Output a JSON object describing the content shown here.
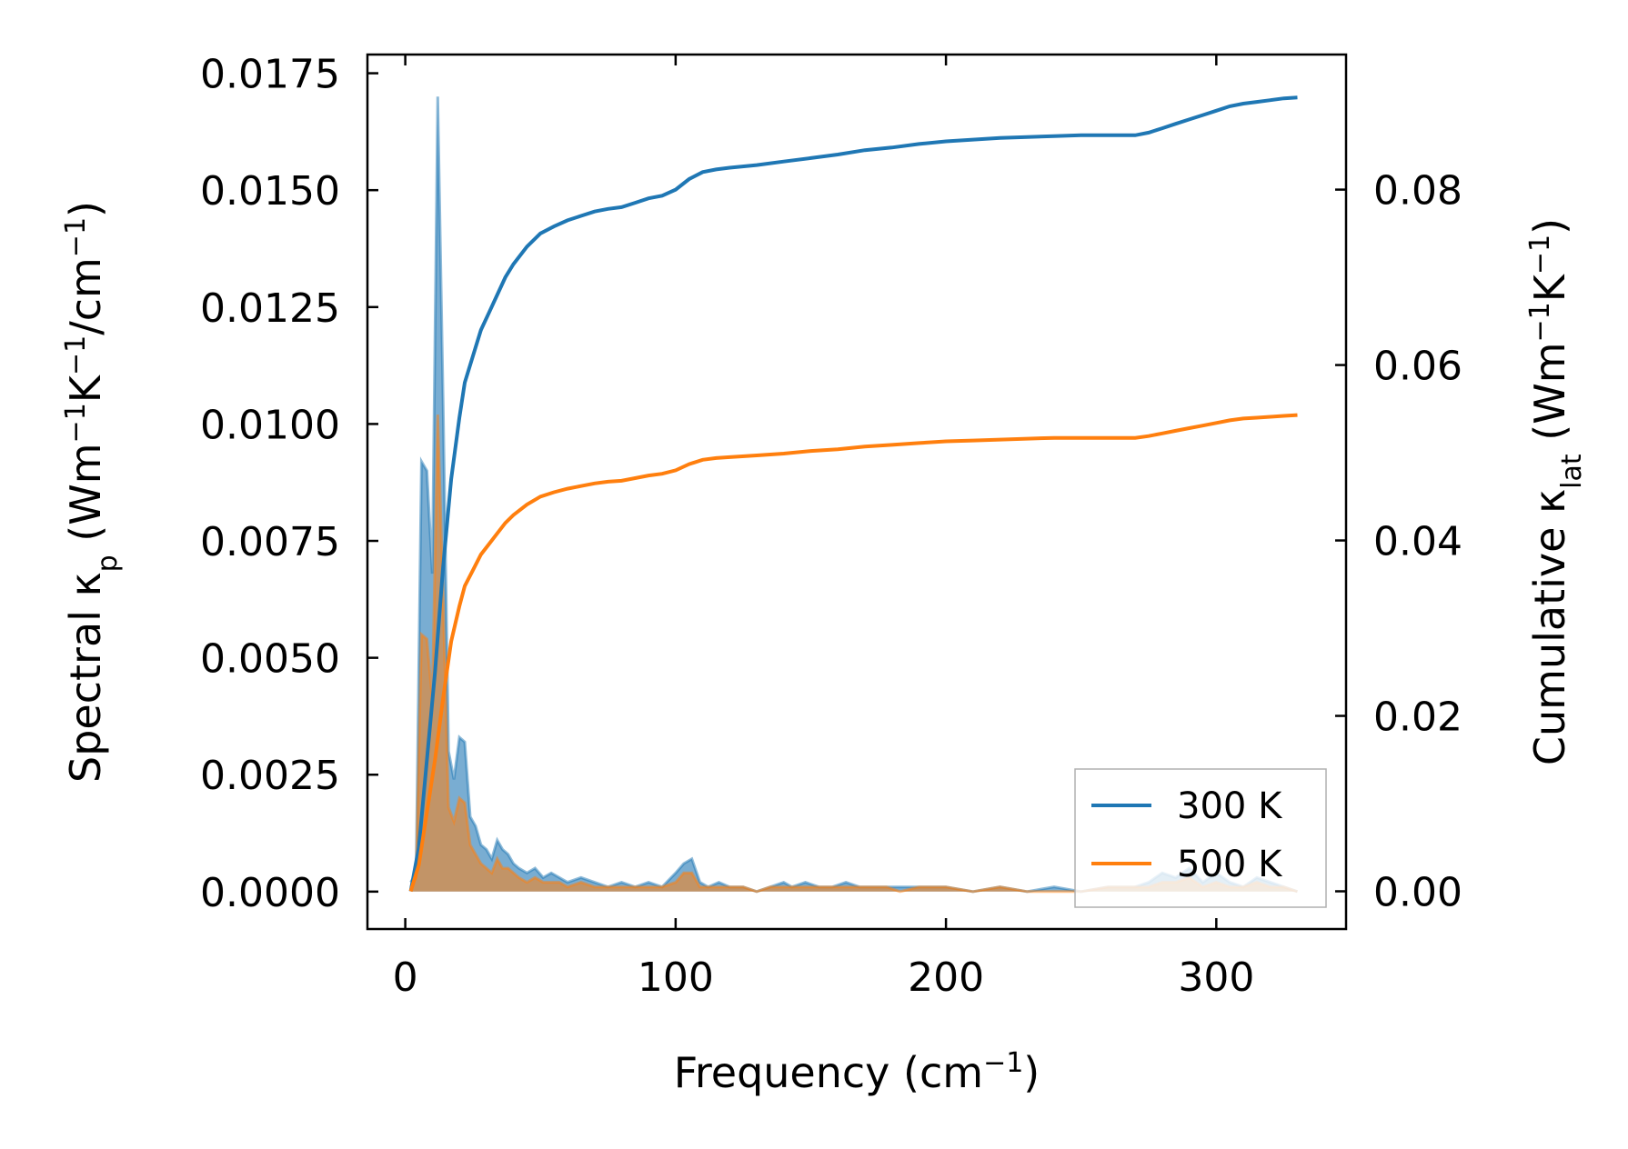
{
  "chart_data": {
    "type": "line",
    "title": "",
    "xlabel": "Frequency (cm",
    "xlabel_sup": "−1",
    "xlabel_tail": ")",
    "x_ticks": [
      "0",
      "100",
      "200",
      "300"
    ],
    "x_tick_values": [
      0,
      100,
      200,
      300
    ],
    "xlim": [
      -14,
      348
    ],
    "left_axis": {
      "label_main": "Spectral κ",
      "label_sub": "p",
      "label_units": " (Wm",
      "label_sup1": "−1",
      "label_k": "K",
      "label_sup2": "−1",
      "label_tail1": "/cm",
      "label_sup3": "−1",
      "label_tail2": ")",
      "ylim": [
        -0.0008,
        0.0179
      ],
      "ticks": [
        "0.0000",
        "0.0025",
        "0.0050",
        "0.0075",
        "0.0100",
        "0.0125",
        "0.0150",
        "0.0175"
      ],
      "tick_values": [
        0,
        0.0025,
        0.005,
        0.0075,
        0.01,
        0.0125,
        0.015,
        0.0175
      ]
    },
    "right_axis": {
      "label_main": "Cumulative κ",
      "label_sub": "lat",
      "label_units": " (Wm",
      "label_sup1": "−1",
      "label_k": "K",
      "label_sup2": "−1",
      "label_tail": ")",
      "ylim": [
        -0.0043,
        0.0954
      ],
      "ticks": [
        "0.00",
        "0.02",
        "0.04",
        "0.06",
        "0.08"
      ],
      "tick_values": [
        0,
        0.02,
        0.04,
        0.06,
        0.08
      ]
    },
    "legend_position": "lower-right",
    "series": [
      {
        "name": "300 K",
        "color": "#1f77b4",
        "spectral_x": [
          2,
          4,
          6,
          8,
          10,
          12,
          14,
          16,
          18,
          20,
          22,
          24,
          26,
          28,
          30,
          32,
          34,
          36,
          38,
          40,
          42,
          45,
          48,
          51,
          54,
          57,
          60,
          65,
          70,
          75,
          80,
          85,
          90,
          95,
          100,
          103,
          106,
          109,
          112,
          116,
          120,
          125,
          130,
          135,
          140,
          143,
          148,
          153,
          158,
          163,
          168,
          173,
          178,
          183,
          190,
          200,
          210,
          220,
          230,
          240,
          250,
          260,
          270,
          275,
          280,
          285,
          290,
          295,
          300,
          305,
          310,
          315,
          320,
          325,
          330
        ],
        "spectral_y": [
          0.0002,
          0.0004,
          0.0092,
          0.009,
          0.0068,
          0.017,
          0.0105,
          0.003,
          0.0024,
          0.0033,
          0.0032,
          0.0016,
          0.0014,
          0.001,
          0.0009,
          0.0007,
          0.0011,
          0.0009,
          0.0008,
          0.0006,
          0.0005,
          0.0004,
          0.0005,
          0.0003,
          0.0004,
          0.0003,
          0.0002,
          0.0003,
          0.0002,
          0.0001,
          0.0002,
          0.0001,
          0.0002,
          0.0001,
          0.0004,
          0.0006,
          0.0007,
          0.0002,
          0.0001,
          0.0002,
          0.0001,
          0.0001,
          0.0,
          0.0001,
          0.0002,
          0.0001,
          0.0002,
          0.0001,
          0.0001,
          0.0002,
          0.0001,
          0.0001,
          0.0001,
          0.0001,
          0.0001,
          0.0001,
          0.0,
          0.0001,
          0.0,
          0.0001,
          0.0,
          0.0001,
          0.0001,
          0.0002,
          0.0004,
          0.0003,
          0.0005,
          0.0002,
          0.0004,
          0.0002,
          0.0001,
          0.0003,
          0.0002,
          0.0001,
          0.0
        ],
        "cumulative_x": [
          2,
          5,
          8,
          11,
          14,
          17,
          20,
          22,
          25,
          28,
          31,
          34,
          37,
          40,
          45,
          50,
          55,
          60,
          65,
          70,
          75,
          80,
          85,
          90,
          95,
          100,
          105,
          110,
          115,
          120,
          130,
          140,
          150,
          160,
          170,
          180,
          190,
          200,
          210,
          220,
          230,
          240,
          250,
          260,
          270,
          275,
          280,
          285,
          290,
          295,
          300,
          305,
          310,
          315,
          320,
          325,
          330
        ],
        "cumulative_y": [
          0.0,
          0.005,
          0.015,
          0.025,
          0.037,
          0.047,
          0.054,
          0.058,
          0.061,
          0.064,
          0.066,
          0.068,
          0.07,
          0.0715,
          0.0735,
          0.075,
          0.0758,
          0.0765,
          0.077,
          0.0775,
          0.0778,
          0.078,
          0.0785,
          0.079,
          0.0793,
          0.08,
          0.0812,
          0.082,
          0.0823,
          0.0825,
          0.0828,
          0.0832,
          0.0836,
          0.084,
          0.0845,
          0.0848,
          0.0852,
          0.0855,
          0.0857,
          0.0859,
          0.086,
          0.0861,
          0.0862,
          0.0862,
          0.0862,
          0.0865,
          0.087,
          0.0875,
          0.088,
          0.0885,
          0.089,
          0.0895,
          0.0898,
          0.09,
          0.0902,
          0.0904,
          0.0905
        ]
      },
      {
        "name": "500 K",
        "color": "#ff7f0e",
        "spectral_x": [
          2,
          4,
          6,
          8,
          10,
          12,
          14,
          16,
          18,
          20,
          22,
          24,
          26,
          28,
          30,
          32,
          34,
          36,
          38,
          40,
          42,
          45,
          48,
          51,
          54,
          57,
          60,
          65,
          70,
          75,
          80,
          85,
          90,
          95,
          100,
          103,
          106,
          109,
          112,
          116,
          120,
          125,
          130,
          135,
          140,
          143,
          148,
          153,
          158,
          163,
          168,
          173,
          178,
          183,
          190,
          200,
          210,
          220,
          230,
          240,
          250,
          260,
          270,
          275,
          280,
          285,
          290,
          295,
          300,
          305,
          310,
          315,
          320,
          325,
          330
        ],
        "spectral_y": [
          0.0001,
          0.0003,
          0.0055,
          0.0054,
          0.0041,
          0.0102,
          0.0063,
          0.0018,
          0.0015,
          0.002,
          0.0019,
          0.001,
          0.0008,
          0.0006,
          0.0005,
          0.0004,
          0.0007,
          0.0005,
          0.0005,
          0.0004,
          0.0003,
          0.0002,
          0.0003,
          0.0002,
          0.0002,
          0.0002,
          0.0001,
          0.0002,
          0.0001,
          0.0001,
          0.0001,
          0.0001,
          0.0001,
          0.0001,
          0.0002,
          0.0004,
          0.0004,
          0.0001,
          0.0001,
          0.0001,
          0.0001,
          0.0001,
          0.0,
          0.0001,
          0.0001,
          0.0001,
          0.0001,
          0.0001,
          0.0001,
          0.0001,
          0.0001,
          0.0001,
          0.0001,
          0.0,
          0.0001,
          0.0001,
          0.0,
          0.0001,
          0.0,
          0.0,
          0.0,
          0.0001,
          0.0001,
          0.0001,
          0.0002,
          0.0002,
          0.0003,
          0.0001,
          0.0002,
          0.0001,
          0.0001,
          0.0002,
          0.0001,
          0.0001,
          0.0
        ],
        "cumulative_x": [
          2,
          5,
          8,
          11,
          14,
          17,
          20,
          22,
          25,
          28,
          31,
          34,
          37,
          40,
          45,
          50,
          55,
          60,
          65,
          70,
          75,
          80,
          85,
          90,
          95,
          100,
          105,
          110,
          115,
          120,
          130,
          140,
          150,
          160,
          170,
          180,
          190,
          200,
          210,
          220,
          230,
          240,
          250,
          260,
          270,
          275,
          280,
          285,
          290,
          295,
          300,
          305,
          310,
          315,
          320,
          325,
          330
        ],
        "cumulative_y": [
          0.0,
          0.003,
          0.009,
          0.015,
          0.022,
          0.0285,
          0.0325,
          0.0348,
          0.0366,
          0.0384,
          0.0396,
          0.0408,
          0.042,
          0.0429,
          0.0441,
          0.045,
          0.0455,
          0.0459,
          0.0462,
          0.0465,
          0.0467,
          0.0468,
          0.0471,
          0.0474,
          0.0476,
          0.048,
          0.0487,
          0.0492,
          0.0494,
          0.0495,
          0.0497,
          0.0499,
          0.0502,
          0.0504,
          0.0507,
          0.0509,
          0.0511,
          0.0513,
          0.0514,
          0.0515,
          0.0516,
          0.0517,
          0.0517,
          0.0517,
          0.0517,
          0.0519,
          0.0522,
          0.0525,
          0.0528,
          0.0531,
          0.0534,
          0.0537,
          0.0539,
          0.054,
          0.0541,
          0.0542,
          0.0543
        ]
      }
    ]
  }
}
